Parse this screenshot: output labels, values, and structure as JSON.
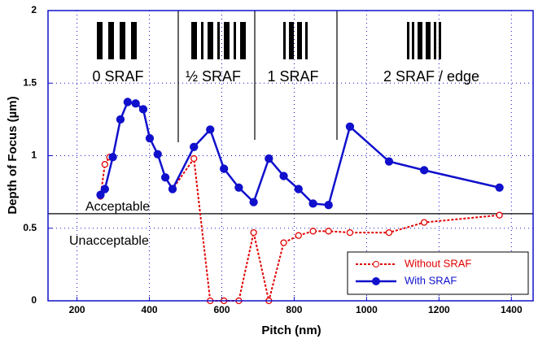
{
  "chart_data": {
    "type": "line",
    "x_label": "Pitch (nm)",
    "y_label": "Depth of Focus (µm)",
    "xlim": [
      120,
      1460
    ],
    "ylim": [
      0,
      2
    ],
    "xticks": [
      200,
      400,
      600,
      800,
      1000,
      1200,
      1400
    ],
    "yticks": [
      0,
      0.5,
      1,
      1.5,
      2
    ],
    "grid": true,
    "legend": "lower right",
    "threshold": 0.6,
    "annotations": [
      "Acceptable",
      "Unacceptable"
    ],
    "regions": [
      "0 SRAF",
      "½ SRAF",
      "1 SRAF",
      "2 SRAF / edge"
    ],
    "series": [
      {
        "name": "Without SRAF",
        "color": "#e00000",
        "style": "dashed",
        "marker": "open",
        "x": [
          265,
          277,
          290,
          299,
          320,
          340,
          362,
          383,
          401,
          423,
          444,
          464,
          523,
          568,
          606,
          647,
          688,
          730,
          771,
          812,
          852,
          895,
          954,
          1062,
          1159,
          1367
        ],
        "values": [
          0.72,
          0.94,
          0.99,
          0.99,
          1.25,
          1.37,
          1.36,
          1.32,
          1.12,
          1.01,
          0.85,
          0.77,
          0.98,
          0,
          0,
          0,
          0.47,
          0,
          0.4,
          0.45,
          0.48,
          0.48,
          0.47,
          0.47,
          0.54,
          0.59
        ]
      },
      {
        "name": "With SRAF",
        "color": "#1010cc",
        "style": "solid",
        "marker": "filled",
        "x": [
          265,
          277,
          299,
          320,
          340,
          362,
          383,
          401,
          423,
          444,
          464,
          523,
          568,
          606,
          647,
          688,
          730,
          771,
          812,
          852,
          895,
          954,
          1062,
          1159,
          1367
        ],
        "values": [
          0.73,
          0.77,
          0.99,
          1.25,
          1.37,
          1.36,
          1.32,
          1.12,
          1.01,
          0.85,
          0.77,
          1.06,
          1.18,
          0.91,
          0.78,
          0.68,
          0.98,
          0.86,
          0.77,
          0.67,
          0.66,
          1.2,
          0.96,
          0.9,
          0.78
        ]
      }
    ]
  }
}
